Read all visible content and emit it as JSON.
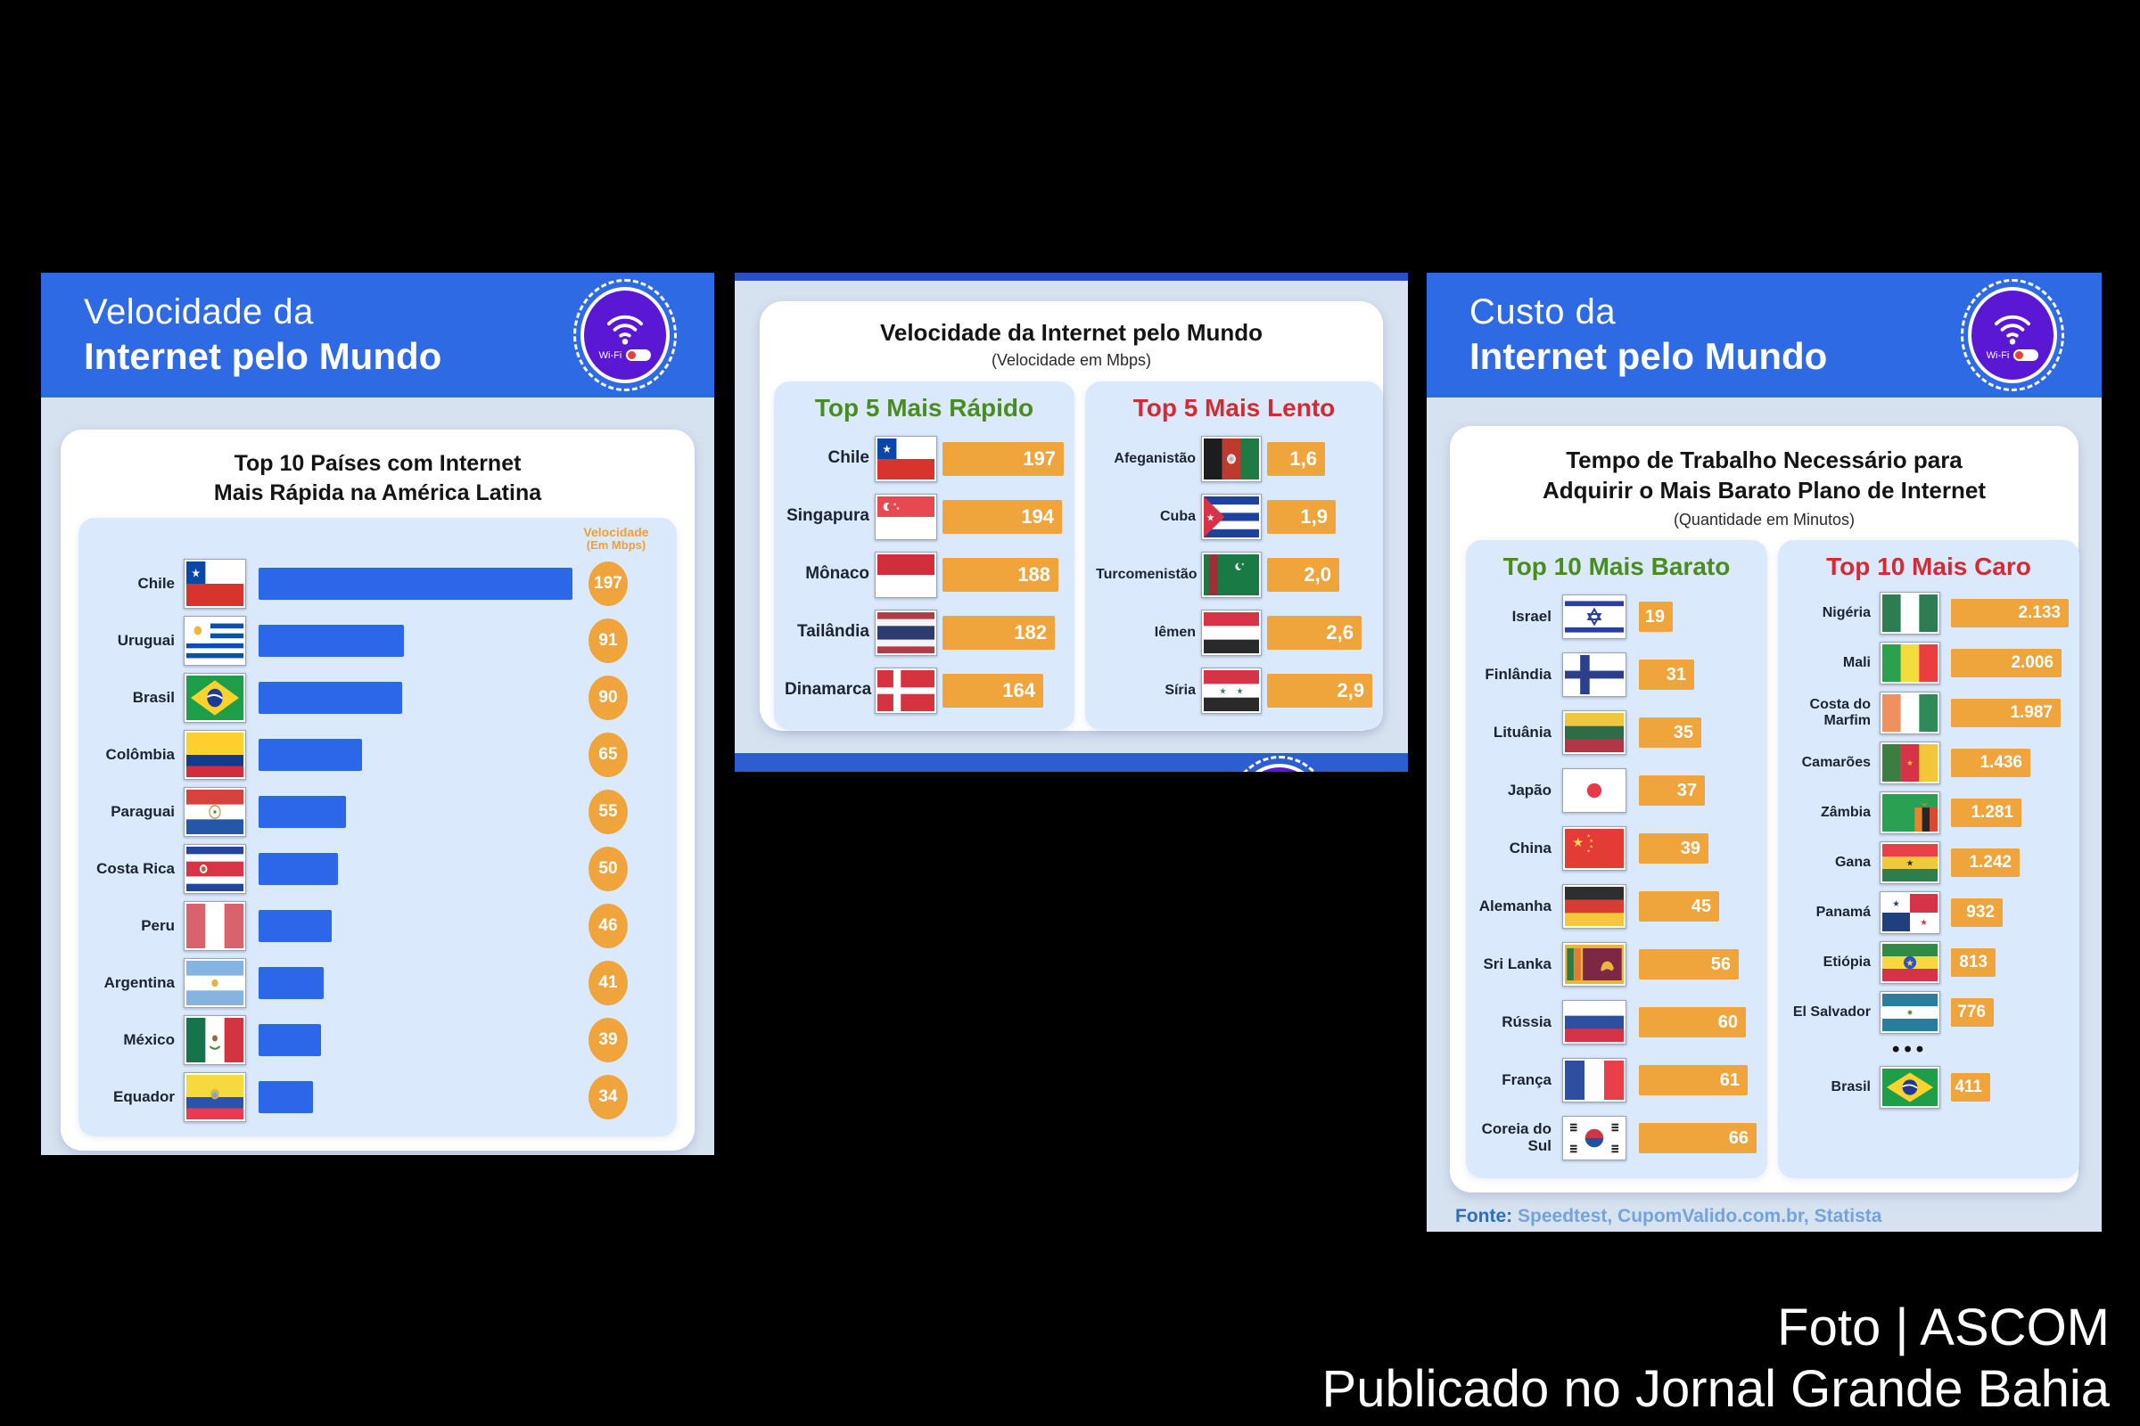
{
  "credit": {
    "line1": "Foto | ASCOM",
    "line2": "Publicado no Jornal Grande Bahia"
  },
  "logo": {
    "wifi_label": "Wi-Fi"
  },
  "panels": {
    "speed_latam": {
      "header_line1": "Velocidade da",
      "header_line2": "Internet pelo Mundo",
      "title_line1": "Top 10 Países com Internet",
      "title_line2": "Mais Rápida na América Latina",
      "unit_line1": "Velocidade",
      "unit_line2": "(Em Mbps)"
    },
    "speed_world": {
      "title": "Velocidade da Internet pelo Mundo",
      "subtitle": "(Velocidade em Mbps)",
      "fastest_title": "Top 5 Mais Rápido",
      "slowest_title": "Top 5 Mais Lento"
    },
    "cost": {
      "header_line1": "Custo da",
      "header_line2": "Internet pelo Mundo",
      "title_line1": "Tempo de Trabalho Necessário para",
      "title_line2": "Adquirir o Mais Barato Plano de Internet",
      "subtitle": "(Quantidade em Minutos)",
      "cheapest_title": "Top 10 Mais Barato",
      "priciest_title": "Top 10 Mais Caro",
      "source_label": "Fonte:",
      "source_text": "Speedtest, CupomValido.com.br, Statista",
      "ellipsis": "•••"
    }
  },
  "colors": {
    "header_blue": "#2d6ae3",
    "bar_blue": "#2c67ea",
    "bar_orange": "#f0a43c",
    "green_title": "#4a8c22",
    "red_title": "#d22b33",
    "logo_purple": "#5a18d4"
  },
  "chart_data": [
    {
      "id": "latam_speed",
      "type": "bar",
      "title": "Top 10 Países com Internet Mais Rápida na América Latina",
      "xlabel": "",
      "ylabel": "Velocidade (Em Mbps)",
      "categories": [
        "Chile",
        "Uruguai",
        "Brasil",
        "Colômbia",
        "Paraguai",
        "Costa Rica",
        "Peru",
        "Argentina",
        "México",
        "Equador"
      ],
      "values": [
        197,
        91,
        90,
        65,
        55,
        50,
        46,
        41,
        39,
        34
      ],
      "flags": [
        "chile",
        "uruguai",
        "brasil",
        "colombia",
        "paraguai",
        "costa-rica",
        "peru",
        "argentina",
        "mexico",
        "equador"
      ]
    },
    {
      "id": "world_fastest",
      "type": "bar",
      "title": "Top 5 Mais Rápido",
      "ylabel": "Velocidade em Mbps",
      "categories": [
        "Chile",
        "Singapura",
        "Mônaco",
        "Tailândia",
        "Dinamarca"
      ],
      "values": [
        197,
        194,
        188,
        182,
        164
      ],
      "flags": [
        "chile",
        "singapura",
        "monaco",
        "tailandia",
        "dinamarca"
      ]
    },
    {
      "id": "world_slowest",
      "type": "bar",
      "title": "Top 5 Mais Lento",
      "ylabel": "Velocidade em Mbps",
      "categories": [
        "Afeganistão",
        "Cuba",
        "Turcomenistão",
        "Iêmen",
        "Síria"
      ],
      "values": [
        1.6,
        1.9,
        2.0,
        2.6,
        2.9
      ],
      "value_labels": [
        "1,6",
        "1,9",
        "2,0",
        "2,6",
        "2,9"
      ],
      "flags": [
        "afeganistao",
        "cuba",
        "turcomenistao",
        "iemen",
        "siria"
      ]
    },
    {
      "id": "cost_cheapest",
      "type": "bar",
      "title": "Top 10 Mais Barato",
      "ylabel": "Minutos",
      "categories": [
        "Israel",
        "Finlândia",
        "Lituânia",
        "Japão",
        "China",
        "Alemanha",
        "Sri Lanka",
        "Rússia",
        "França",
        "Coreia do Sul"
      ],
      "values": [
        19,
        31,
        35,
        37,
        39,
        45,
        56,
        60,
        61,
        66
      ],
      "flags": [
        "israel",
        "finlandia",
        "lituania",
        "japao",
        "china",
        "alemanha",
        "sri-lanka",
        "russia",
        "franca",
        "coreia-do-sul"
      ]
    },
    {
      "id": "cost_priciest",
      "type": "bar",
      "title": "Top 10 Mais Caro",
      "ylabel": "Minutos",
      "categories": [
        "Nigéria",
        "Mali",
        "Costa do Marfim",
        "Camarões",
        "Zâmbia",
        "Gana",
        "Panamá",
        "Etiópia",
        "El Salvador",
        "Brasil"
      ],
      "values": [
        2133,
        2006,
        1987,
        1436,
        1281,
        1242,
        932,
        813,
        776,
        411
      ],
      "value_labels": [
        "2.133",
        "2.006",
        "1.987",
        "1.436",
        "1.281",
        "1.242",
        "932",
        "813",
        "776",
        "411"
      ],
      "ellipsis_after_index": 8,
      "flags": [
        "nigeria",
        "mali",
        "costa-do-marfim",
        "camaroes",
        "zambia",
        "gana",
        "panama",
        "etiopia",
        "el-salvador",
        "brasil"
      ]
    }
  ]
}
